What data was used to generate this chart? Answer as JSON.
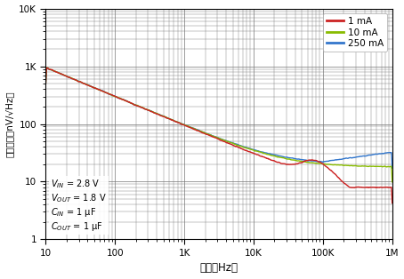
{
  "xlabel": "頻率（Hz）",
  "ylabel": "输出噪声（nV/√Hz）",
  "xlim": [
    10,
    1000000
  ],
  "ylim": [
    1,
    10000
  ],
  "xticks": [
    10,
    100,
    1000,
    10000,
    100000,
    1000000
  ],
  "xticklabels": [
    "10",
    "100",
    "1K",
    "10K",
    "100K",
    "1M"
  ],
  "yticks": [
    1,
    10,
    100,
    1000,
    10000
  ],
  "yticklabels": [
    "1",
    "10",
    "100",
    "1K",
    "10K"
  ],
  "legend_entries": [
    "1 mA",
    "10 mA",
    "250 mA"
  ],
  "legend_colors": [
    "#cc2222",
    "#88bb00",
    "#3377cc"
  ],
  "bg_color": "#ffffff",
  "grid_color": "#777777",
  "line_width": 1.0,
  "figsize": [
    4.54,
    3.14
  ],
  "dpi": 100
}
